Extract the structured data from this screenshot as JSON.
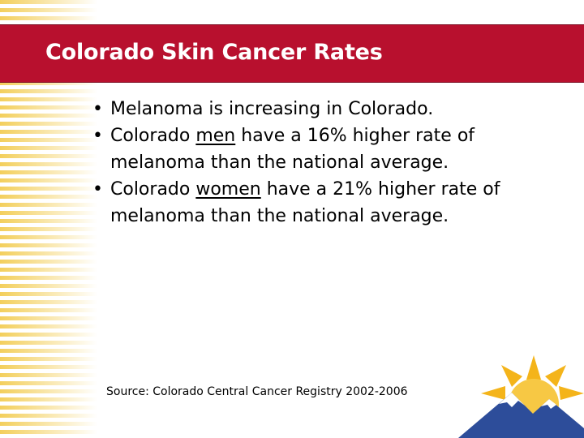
{
  "slide": {
    "title": "Colorado Skin Cancer Rates",
    "bullets": [
      {
        "text": "Melanoma is increasing in Colorado."
      },
      {
        "before": "Colorado ",
        "underlined": "men",
        "after": " have a 16% higher rate of melanoma than the national average."
      },
      {
        "before": "Colorado ",
        "underlined": "women",
        "after": " have a 21% higher rate of melanoma than the national average."
      }
    ],
    "source": "Source:  Colorado Central Cancer Registry 2002-2006"
  },
  "theme": {
    "title_bar_color": "#b8102e",
    "stripe_color": "#f6d878",
    "sun_color": "#f4b41a",
    "mountain_color": "#2d4d9a"
  },
  "icons": {
    "logo": "sun-over-mountains-logo",
    "decoration": "yellow-stripes-pattern"
  }
}
